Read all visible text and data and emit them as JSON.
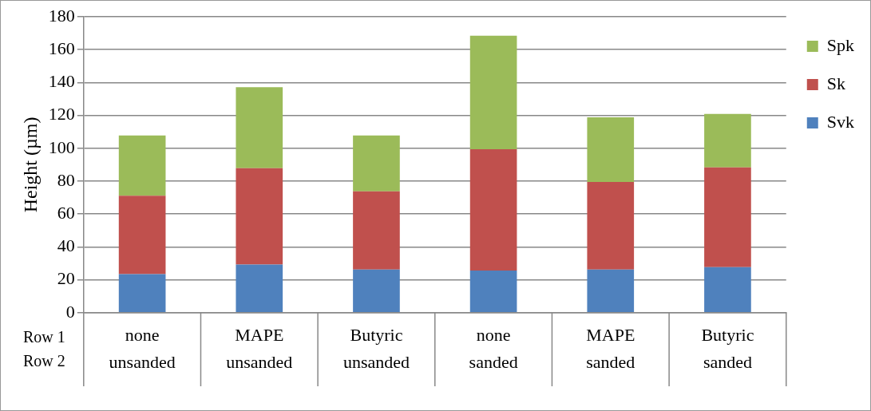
{
  "chart_data": {
    "type": "bar",
    "stacked": true,
    "ylabel": "Height (µm)",
    "categories": [
      "none\nunsanded",
      "MAPE\nunsanded",
      "Butyric\nunsanded",
      "none\nsanded",
      "MAPE\nsanded",
      "Butyric\nsanded"
    ],
    "series": [
      {
        "name": "Svk",
        "color": "#4f81bd",
        "values": [
          23.5,
          29.3,
          26.2,
          25.6,
          26.2,
          27.7
        ]
      },
      {
        "name": "Sk",
        "color": "#c0504d",
        "values": [
          47.7,
          58.6,
          47.6,
          73.8,
          53.3,
          60.7
        ]
      },
      {
        "name": "Spk",
        "color": "#9bbb59",
        "values": [
          36.6,
          49.2,
          34.0,
          69.1,
          39.3,
          32.5
        ]
      }
    ],
    "ylim": [
      0,
      180
    ],
    "yticks": [
      0,
      20,
      40,
      60,
      80,
      100,
      120,
      140,
      160,
      180
    ],
    "grid": "y",
    "legend": "right",
    "annotations": [
      "Row 1",
      "Row 2"
    ]
  }
}
